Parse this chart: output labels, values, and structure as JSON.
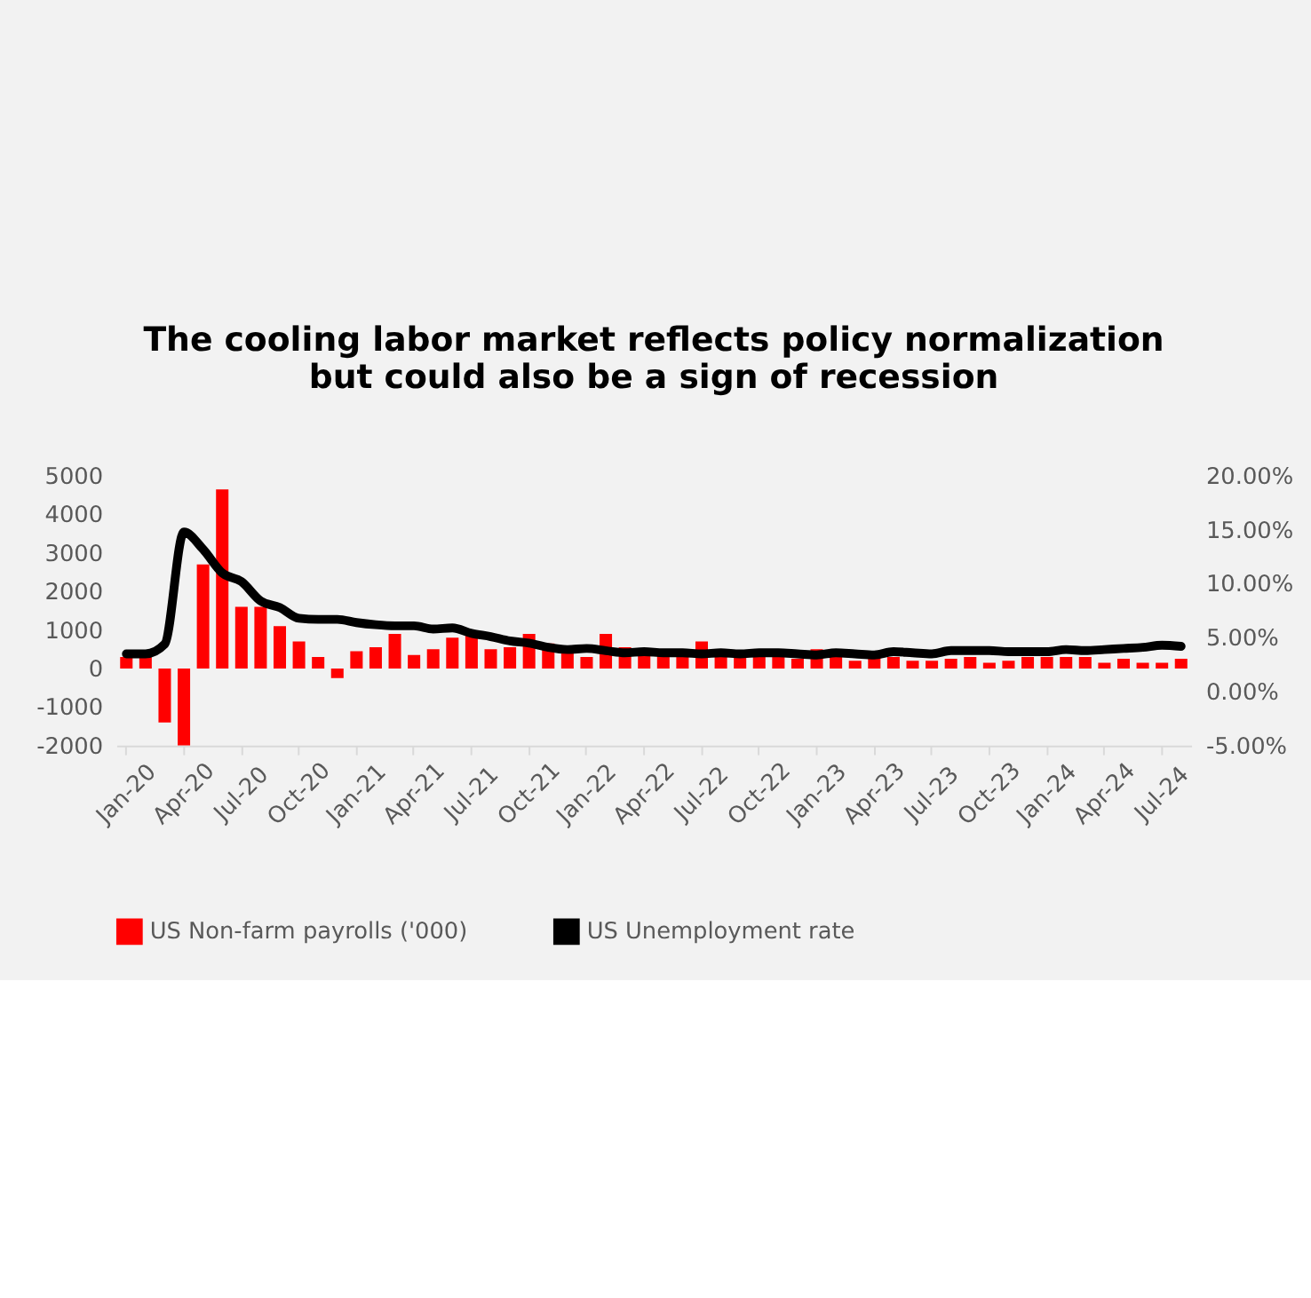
{
  "chart_data": {
    "type": "bar",
    "title": [
      "The cooling labor market reflects policy normalization",
      "but could also be a sign of recession"
    ],
    "categories": [
      "Jan-20",
      null,
      null,
      "Apr-20",
      null,
      null,
      "Jul-20",
      null,
      null,
      "Oct-20",
      null,
      null,
      "Jan-21",
      null,
      null,
      "Apr-21",
      null,
      null,
      "Jul-21",
      null,
      null,
      "Oct-21",
      null,
      null,
      "Jan-22",
      null,
      null,
      "Apr-22",
      null,
      null,
      "Jul-22",
      null,
      null,
      "Oct-22",
      null,
      null,
      "Jan-23",
      null,
      null,
      "Apr-23",
      null,
      null,
      "Jul-23",
      null,
      null,
      "Oct-23",
      null,
      null,
      "Jan-24",
      null,
      null,
      "Apr-24",
      null,
      null,
      "Jul-24",
      null
    ],
    "series": [
      {
        "name": "US Non-farm payrolls ('000)",
        "color": "#ff0000",
        "values": [
          300,
          300,
          -1400,
          -2000,
          2700,
          4650,
          1600,
          1600,
          1100,
          700,
          300,
          -250,
          450,
          550,
          900,
          350,
          500,
          800,
          850,
          500,
          550,
          900,
          650,
          550,
          300,
          900,
          550,
          450,
          400,
          400,
          700,
          350,
          350,
          350,
          300,
          250,
          500,
          300,
          200,
          300,
          300,
          200,
          200,
          250,
          300,
          150,
          200,
          300,
          300,
          300,
          300,
          150,
          250,
          150,
          150,
          250
        ]
      },
      {
        "name": "US Unemployment rate",
        "type": "line",
        "axis": "y2",
        "color": "#000000",
        "line_style": "solid",
        "marker": "none",
        "values": [
          3.5,
          3.5,
          4.4,
          14.8,
          13.2,
          11.0,
          10.2,
          8.4,
          7.8,
          6.8,
          6.7,
          6.7,
          6.4,
          6.2,
          6.1,
          6.1,
          5.8,
          5.9,
          5.4,
          5.1,
          4.7,
          4.5,
          4.1,
          3.9,
          4.0,
          3.8,
          3.6,
          3.7,
          3.6,
          3.6,
          3.5,
          3.6,
          3.5,
          3.6,
          3.6,
          3.5,
          3.4,
          3.6,
          3.5,
          3.4,
          3.7,
          3.6,
          3.5,
          3.8,
          3.8,
          3.8,
          3.7,
          3.7,
          3.7,
          3.9,
          3.8,
          3.9,
          4.0,
          4.1,
          4.3,
          4.2
        ]
      }
    ],
    "ylim": [
      -2000,
      5000
    ],
    "yticks": [
      -2000,
      -1000,
      0,
      1000,
      2000,
      3000,
      4000,
      5000
    ],
    "y2lim": [
      -5,
      20
    ],
    "y2ticks": [
      {
        "value": -5,
        "label": "-5.00%"
      },
      {
        "value": 0,
        "label": "0.00%"
      },
      {
        "value": 5,
        "label": "5.00%"
      },
      {
        "value": 10,
        "label": "10.00%"
      },
      {
        "value": 15,
        "label": "15.00%"
      },
      {
        "value": 20,
        "label": "20.00%"
      }
    ],
    "grid": false,
    "legend": "bottom"
  }
}
